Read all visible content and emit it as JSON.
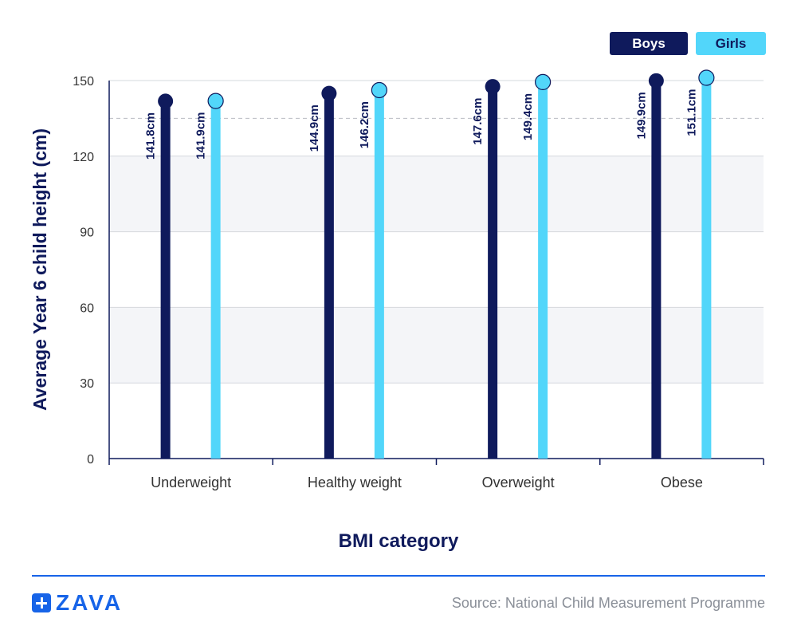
{
  "chart_data": {
    "type": "lollipop",
    "title": "",
    "xlabel": "BMI category",
    "ylabel": "Average Year 6 child height (cm)",
    "ylim": [
      0,
      150
    ],
    "yticks": [
      0,
      30,
      60,
      90,
      120,
      150
    ],
    "reference_line": 135,
    "categories": [
      "Underweight",
      "Healthy weight",
      "Overweight",
      "Obese"
    ],
    "series": [
      {
        "name": "Boys",
        "color": "#0f1a5c",
        "values": [
          141.8,
          144.9,
          147.6,
          149.9
        ],
        "labels": [
          "141.8cm",
          "144.9cm",
          "147.6cm",
          "149.9cm"
        ]
      },
      {
        "name": "Girls",
        "color": "#52d6fa",
        "values": [
          141.9,
          146.2,
          149.4,
          151.1
        ],
        "labels": [
          "141.9cm",
          "146.2cm",
          "149.4cm",
          "151.1cm"
        ]
      }
    ],
    "legend": {
      "position": "top-right"
    }
  },
  "legend": {
    "boys": "Boys",
    "girls": "Girls"
  },
  "footer": {
    "brand": "ZAVA",
    "source": "Source: National Child Measurement Programme"
  },
  "colors": {
    "accent": "#1764e8",
    "band": "#f4f5f8",
    "grid": "#d6d8dd"
  }
}
